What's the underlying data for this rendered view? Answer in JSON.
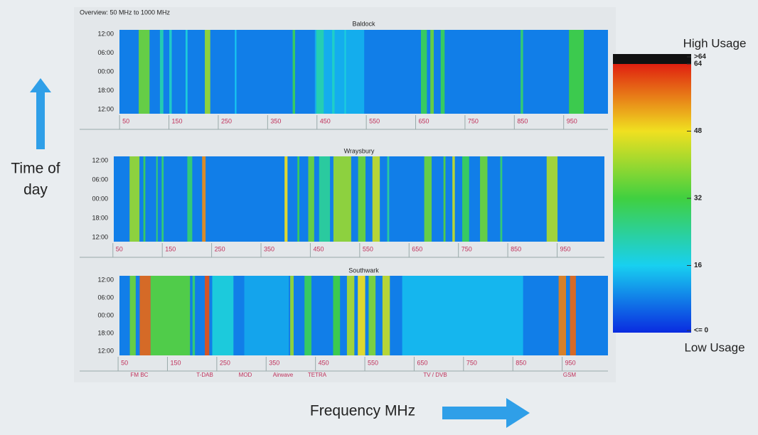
{
  "overview_title": "Overview:  50 MHz to 1000 MHz",
  "chart_data": [
    {
      "type": "heatmap",
      "title": "Baldock",
      "xlim": [
        44,
        1034
      ],
      "xticks": [
        50,
        150,
        250,
        350,
        450,
        550,
        650,
        750,
        850,
        950
      ],
      "y_labels": [
        "12:00",
        "06:00",
        "00:00",
        "18:00",
        "12:00"
      ],
      "base_usage": 8,
      "stripes": [
        {
          "from": 440,
          "to": 540,
          "usage": 13
        },
        {
          "from": 83,
          "to": 105,
          "usage": 36
        },
        {
          "from": 126,
          "to": 133,
          "usage": 22
        },
        {
          "from": 145,
          "to": 150,
          "usage": 20
        },
        {
          "from": 178,
          "to": 182,
          "usage": 18
        },
        {
          "from": 217,
          "to": 228,
          "usage": 40
        },
        {
          "from": 278,
          "to": 281,
          "usage": 16
        },
        {
          "from": 395,
          "to": 400,
          "usage": 30
        },
        {
          "from": 443,
          "to": 458,
          "usage": 22
        },
        {
          "from": 475,
          "to": 480,
          "usage": 20
        },
        {
          "from": 500,
          "to": 503,
          "usage": 18
        },
        {
          "from": 655,
          "to": 667,
          "usage": 30
        },
        {
          "from": 674,
          "to": 681,
          "usage": 36
        },
        {
          "from": 695,
          "to": 703,
          "usage": 30
        },
        {
          "from": 857,
          "to": 862,
          "usage": 28
        },
        {
          "from": 955,
          "to": 985,
          "usage": 32
        }
      ]
    },
    {
      "type": "heatmap",
      "title": "Wraysbury",
      "xlim": [
        46,
        1040
      ],
      "xticks": [
        50,
        150,
        250,
        350,
        450,
        550,
        650,
        750,
        850,
        950
      ],
      "y_labels": [
        "12:00",
        "06:00",
        "00:00",
        "18:00",
        "12:00"
      ],
      "base_usage": 8,
      "stripes": [
        {
          "from": 78,
          "to": 98,
          "usage": 40
        },
        {
          "from": 106,
          "to": 110,
          "usage": 30
        },
        {
          "from": 132,
          "to": 135,
          "usage": 28
        },
        {
          "from": 143,
          "to": 147,
          "usage": 28
        },
        {
          "from": 195,
          "to": 205,
          "usage": 28
        },
        {
          "from": 225,
          "to": 232,
          "usage": 55
        },
        {
          "from": 392,
          "to": 398,
          "usage": 48
        },
        {
          "from": 418,
          "to": 422,
          "usage": 30
        },
        {
          "from": 440,
          "to": 452,
          "usage": 36
        },
        {
          "from": 462,
          "to": 484,
          "usage": 24
        },
        {
          "from": 491,
          "to": 527,
          "usage": 40
        },
        {
          "from": 541,
          "to": 556,
          "usage": 36
        },
        {
          "from": 570,
          "to": 585,
          "usage": 44
        },
        {
          "from": 600,
          "to": 604,
          "usage": 24
        },
        {
          "from": 675,
          "to": 690,
          "usage": 36
        },
        {
          "from": 714,
          "to": 718,
          "usage": 34
        },
        {
          "from": 732,
          "to": 737,
          "usage": 44
        },
        {
          "from": 752,
          "to": 766,
          "usage": 30
        },
        {
          "from": 788,
          "to": 803,
          "usage": 36
        },
        {
          "from": 829,
          "to": 833,
          "usage": 28
        },
        {
          "from": 923,
          "to": 945,
          "usage": 42
        }
      ]
    },
    {
      "type": "heatmap",
      "title": "Southwark",
      "xlim": [
        47,
        1037
      ],
      "xticks": [
        50,
        150,
        250,
        350,
        450,
        550,
        650,
        750,
        850,
        950
      ],
      "y_labels": [
        "12:00",
        "06:00",
        "00:00",
        "18:00",
        "12:00"
      ],
      "base_usage": 8,
      "stripes": [
        {
          "from": 620,
          "to": 865,
          "usage": 14
        },
        {
          "from": 300,
          "to": 390,
          "usage": 12
        },
        {
          "from": 68,
          "to": 80,
          "usage": 36
        },
        {
          "from": 110,
          "to": 190,
          "usage": 34
        },
        {
          "from": 88,
          "to": 110,
          "usage": 58
        },
        {
          "from": 195,
          "to": 200,
          "usage": 28
        },
        {
          "from": 220,
          "to": 229,
          "usage": 60
        },
        {
          "from": 235,
          "to": 278,
          "usage": 18
        },
        {
          "from": 393,
          "to": 400,
          "usage": 40
        },
        {
          "from": 422,
          "to": 436,
          "usage": 30
        },
        {
          "from": 480,
          "to": 494,
          "usage": 32
        },
        {
          "from": 508,
          "to": 523,
          "usage": 42
        },
        {
          "from": 530,
          "to": 545,
          "usage": 48
        },
        {
          "from": 552,
          "to": 566,
          "usage": 38
        },
        {
          "from": 580,
          "to": 595,
          "usage": 44
        },
        {
          "from": 937,
          "to": 952,
          "usage": 56
        },
        {
          "from": 960,
          "to": 972,
          "usage": 58
        }
      ],
      "band_labels": [
        "FM BC",
        "T-DAB",
        "MOD",
        "Airwave",
        "TETRA",
        "TV / DVB",
        "GSM"
      ]
    }
  ],
  "colorbar": {
    "ylim": [
      0,
      64
    ],
    "ticks": [
      {
        "value": 68,
        "label": ">64"
      },
      64,
      48,
      32,
      16,
      {
        "value": 0,
        "label": "<= 0"
      }
    ],
    "colorscale": [
      [
        0,
        "#0a2be0"
      ],
      [
        16,
        "#18d0f0"
      ],
      [
        32,
        "#40d040"
      ],
      [
        48,
        "#f0e020"
      ],
      [
        64,
        "#e02010"
      ]
    ],
    "overflow_color": "#111111",
    "high_label": "High Usage",
    "low_label": "Low Usage"
  },
  "y_axis_label": [
    "Time of",
    "day"
  ],
  "x_axis_label": "Frequency MHz"
}
